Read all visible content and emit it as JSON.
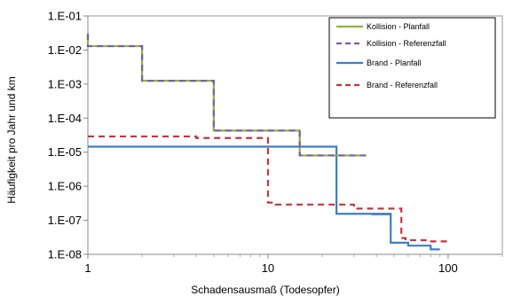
{
  "chart_data": {
    "type": "line",
    "xlabel": "Schadensausmaß  (Todesopfer)",
    "ylabel": "Häufigkeit pro Jahr und km",
    "xscale": "log",
    "yscale": "log",
    "xlim": [
      1,
      200
    ],
    "ylim": [
      1e-08,
      0.1
    ],
    "x_ticks": [
      {
        "value": 1,
        "label": "1"
      },
      {
        "value": 10,
        "label": "10"
      },
      {
        "value": 100,
        "label": "100"
      }
    ],
    "y_ticks": [
      {
        "value": 0.1,
        "label": "1.E-01"
      },
      {
        "value": 0.01,
        "label": "1.E-02"
      },
      {
        "value": 0.001,
        "label": "1.E-03"
      },
      {
        "value": 0.0001,
        "label": "1.E-04"
      },
      {
        "value": 1e-05,
        "label": "1.E-05"
      },
      {
        "value": 1e-06,
        "label": "1.E-06"
      },
      {
        "value": 1e-07,
        "label": "1.E-07"
      },
      {
        "value": 1e-08,
        "label": "1.E-08"
      }
    ],
    "grid": false,
    "legend_position": "top-right",
    "series": [
      {
        "name": "Kollision - Planfall",
        "color": "#8db33e",
        "style": "solid",
        "x": [
          1,
          1,
          2,
          2,
          5,
          5,
          15,
          15,
          35
        ],
        "y": [
          0.03,
          0.013,
          0.013,
          0.00125,
          0.00125,
          4.3e-05,
          4.3e-05,
          8e-06,
          8e-06
        ]
      },
      {
        "name": "Kollision - Referenzfall",
        "color": "#7b5ea7",
        "style": "dashed",
        "x": [
          1,
          1,
          2,
          2,
          5,
          5,
          15,
          15,
          35
        ],
        "y": [
          0.03,
          0.013,
          0.013,
          0.00125,
          0.00125,
          4.3e-05,
          4.3e-05,
          8e-06,
          8e-06
        ]
      },
      {
        "name": "Brand - Planfall",
        "color": "#3f7dc6",
        "style": "solid",
        "x": [
          1,
          24,
          24,
          48,
          48,
          60,
          60,
          80,
          80,
          90
        ],
        "y": [
          1.45e-05,
          1.45e-05,
          1.55e-07,
          1.55e-07,
          2.2e-08,
          2.2e-08,
          1.8e-08,
          1.8e-08,
          1.4e-08,
          1.4e-08
        ],
        "extra_steps": [
          {
            "x": [
              38,
              38,
              48
            ],
            "y": [
              1.55e-07,
              1.5e-07,
              1.5e-07
            ]
          }
        ]
      },
      {
        "name": "Brand - Referenzfall",
        "color": "#c0393b",
        "style": "dashed",
        "x": [
          1,
          4,
          4,
          10,
          10,
          11,
          11,
          30,
          30,
          55,
          55,
          58,
          58,
          75,
          75,
          100
        ],
        "y": [
          2.9e-05,
          2.9e-05,
          2.6e-05,
          2.6e-05,
          3.3e-07,
          3.3e-07,
          2.9e-07,
          2.9e-07,
          2.2e-07,
          2.2e-07,
          3e-08,
          3e-08,
          2.6e-08,
          2.6e-08,
          2.4e-08,
          2.4e-08
        ]
      }
    ]
  }
}
